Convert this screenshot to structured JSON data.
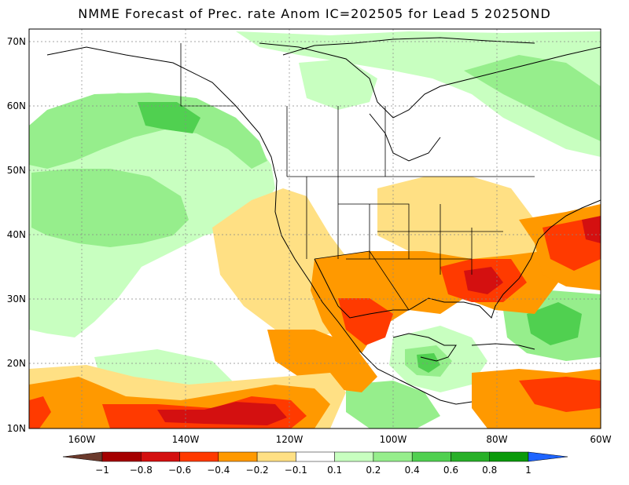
{
  "title": "NMME Forecast of Prec. rate Anom IC=202505 for Lead 5 2025OND",
  "lat_labels": [
    "70N",
    "60N",
    "50N",
    "40N",
    "30N",
    "20N",
    "10N"
  ],
  "lon_labels": [
    "160W",
    "140W",
    "120W",
    "100W",
    "80W",
    "60W"
  ],
  "colorbar": {
    "labels": [
      "−1",
      "−0.8",
      "−0.6",
      "−0.4",
      "−0.2",
      "−0.1",
      "0.1",
      "0.2",
      "0.4",
      "0.6",
      "0.8",
      "1"
    ],
    "colors": [
      "#6b3a2c",
      "#a50000",
      "#d41010",
      "#ff3a00",
      "#ff9900",
      "#ffe084",
      "#ffffff",
      "#c8ffc0",
      "#96ee8c",
      "#50d050",
      "#28b028",
      "#0a9a0a",
      "#1e64ff"
    ]
  },
  "colors": {
    "dry_strong": "#d41010",
    "dry": "#ff3a00",
    "dry_mod": "#ff9900",
    "dry_weak": "#ffe084",
    "wet_weak": "#c8ffc0",
    "wet": "#96ee8c",
    "wet_mod": "#50d050",
    "wet_strong": "#28b028"
  }
}
